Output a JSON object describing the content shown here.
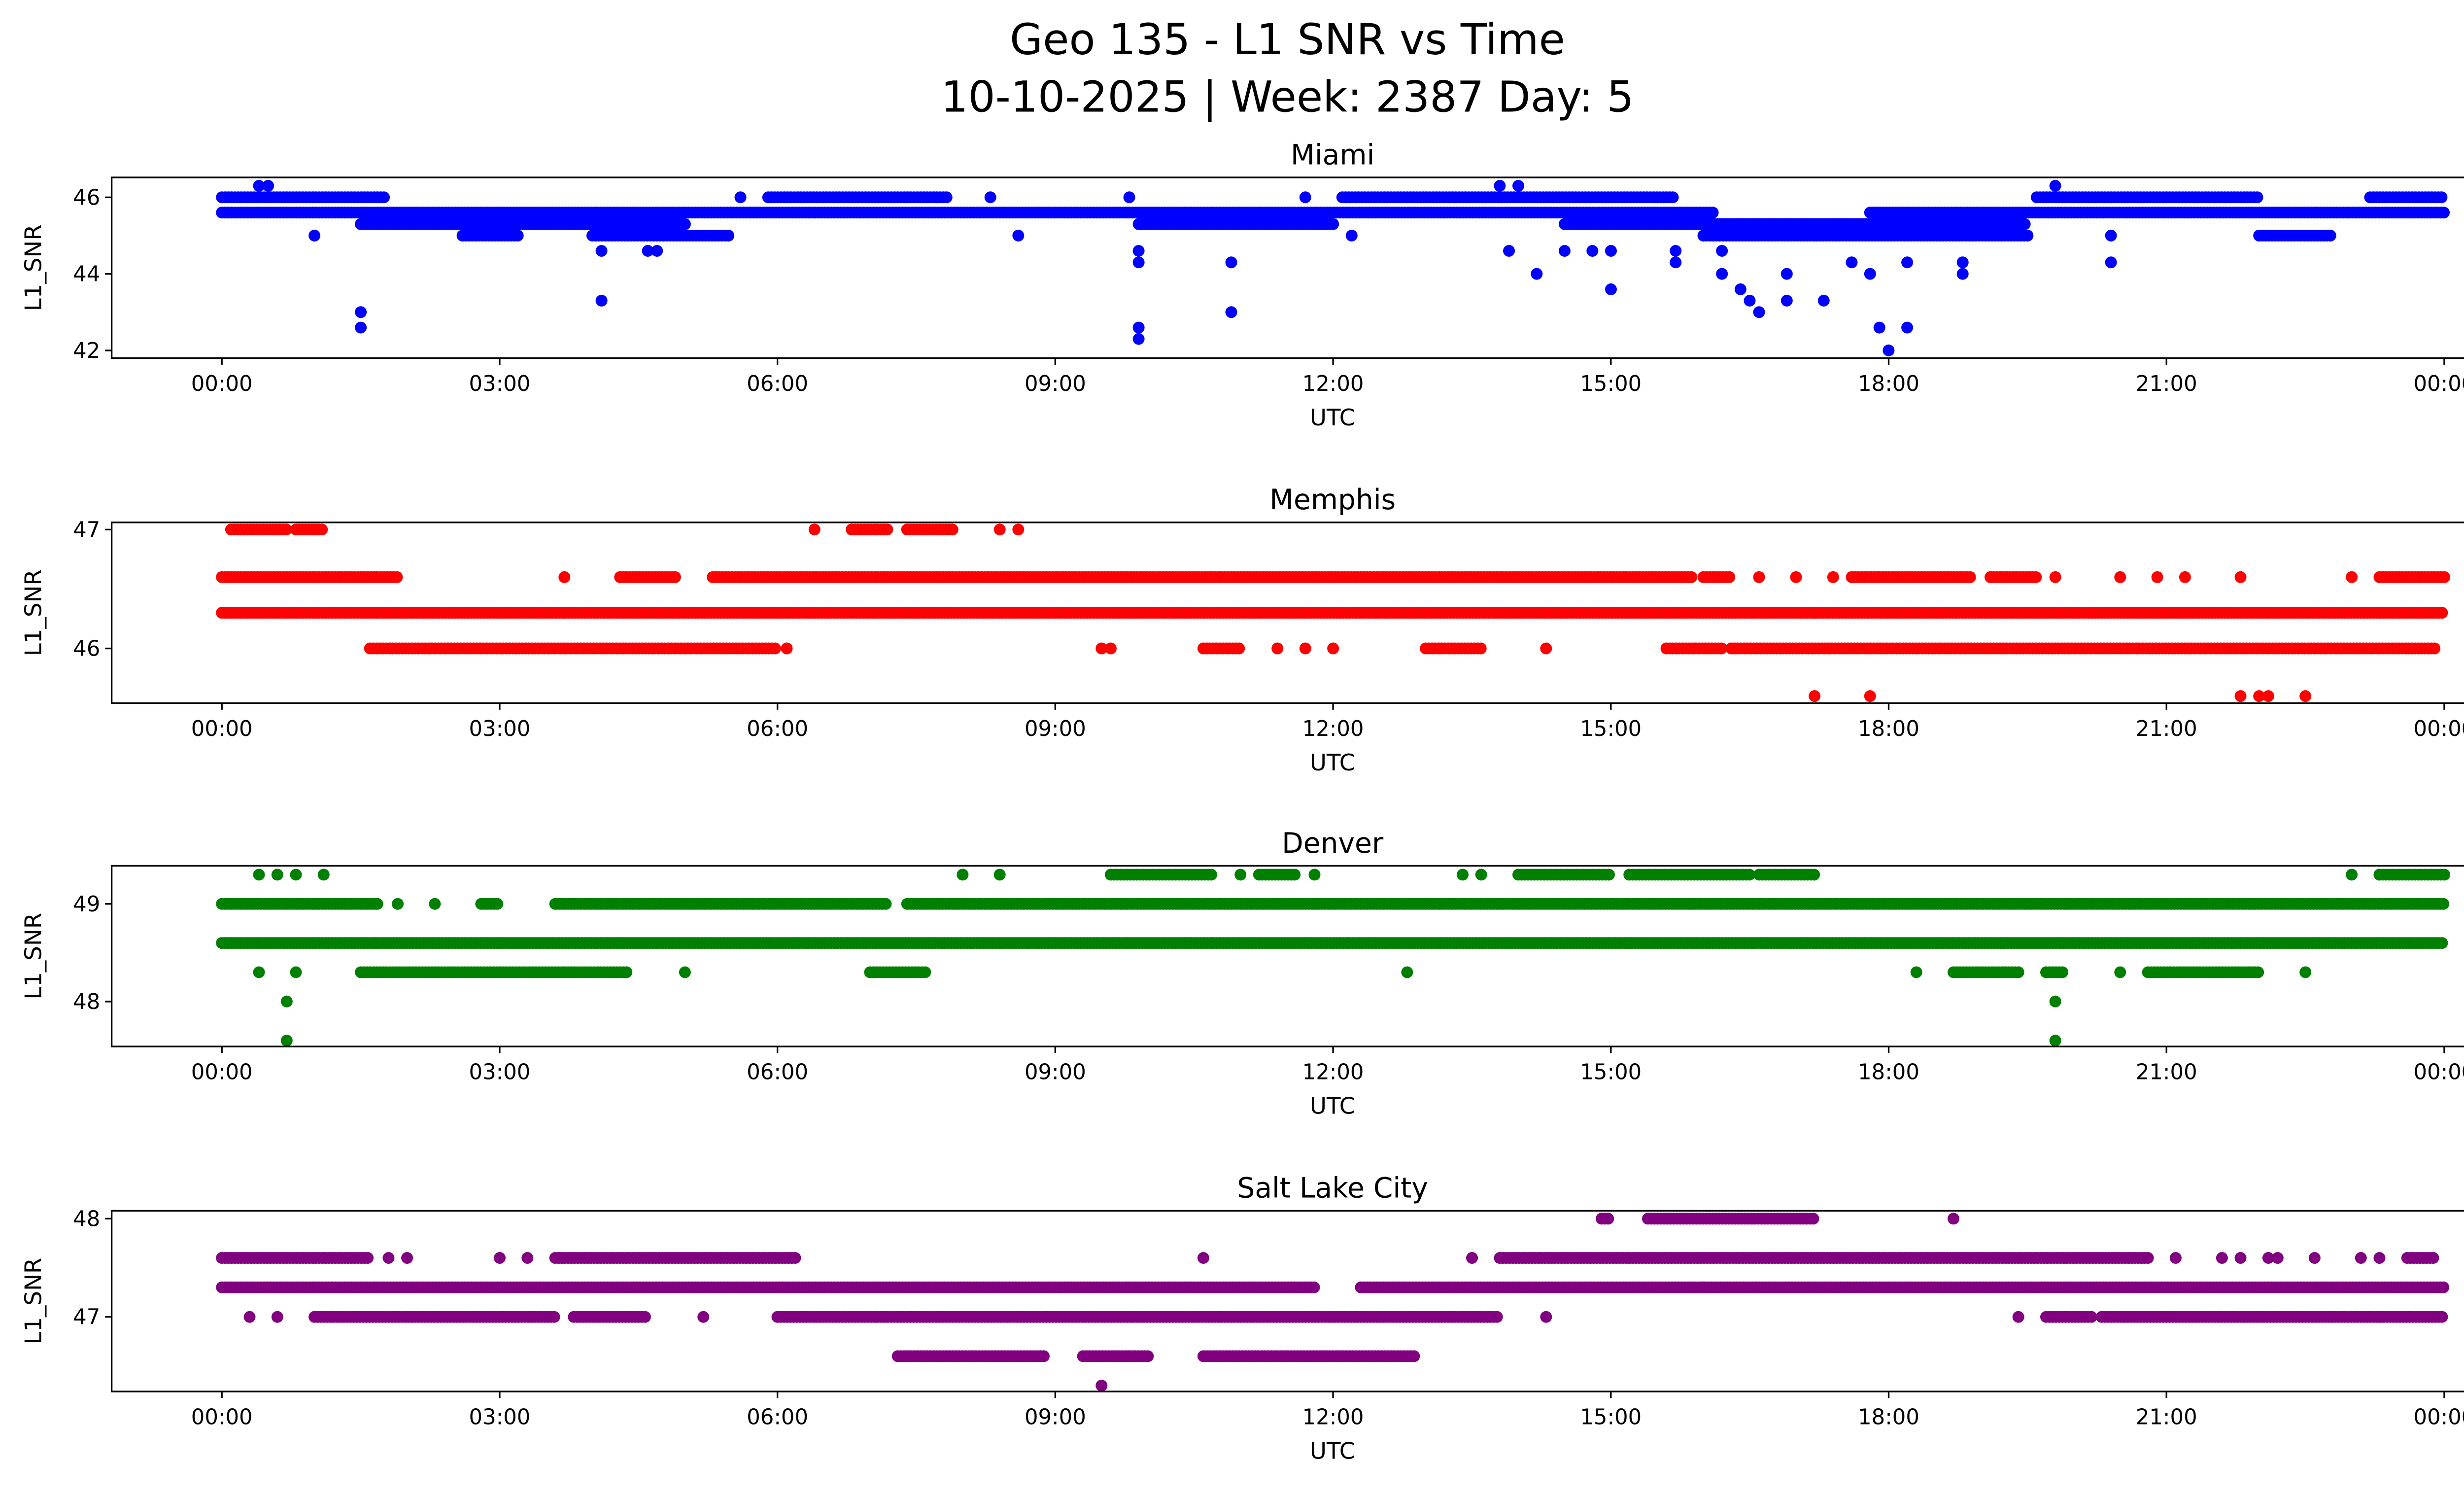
{
  "title_line1": "Geo 135 - L1 SNR vs Time",
  "title_line2": "10-10-2025 | Week: 2387 Day: 5",
  "chart_data": [
    {
      "type": "scatter",
      "title": "Miami",
      "color": "#0000ff",
      "xlabel": "UTC",
      "ylabel": "L1_SNR",
      "xlim_hours": [
        -1.19,
        25.18
      ],
      "ylim": [
        41.8,
        46.52
      ],
      "yticks": [
        42,
        44,
        46
      ],
      "xticks_hours": [
        0,
        3,
        6,
        9,
        12,
        15,
        18,
        21,
        24
      ],
      "xtick_labels": [
        "00:00",
        "03:00",
        "06:00",
        "09:00",
        "12:00",
        "15:00",
        "18:00",
        "21:00",
        "00:00"
      ],
      "segments": [
        [
          46.0,
          0,
          1.75
        ],
        [
          46.0,
          5.9,
          7.85
        ],
        [
          46.0,
          12.1,
          15.7
        ],
        [
          46.0,
          19.6,
          22.0
        ],
        [
          46.0,
          23.2,
          24
        ],
        [
          45.6,
          0,
          16.1
        ],
        [
          45.6,
          17.8,
          24
        ],
        [
          45.3,
          1.5,
          5.0
        ],
        [
          45.3,
          9.9,
          12.0
        ],
        [
          45.3,
          14.5,
          19.5
        ],
        [
          45.0,
          2.6,
          3.2
        ],
        [
          45.0,
          4.0,
          5.5
        ],
        [
          45.0,
          16.0,
          19.5
        ],
        [
          45.0,
          22.0,
          22.8
        ]
      ],
      "points": [
        [
          0.4,
          46.3
        ],
        [
          0.5,
          46.3
        ],
        [
          13.8,
          46.3
        ],
        [
          14.0,
          46.3
        ],
        [
          19.8,
          46.3
        ],
        [
          1.0,
          45.0
        ],
        [
          1.5,
          43.0
        ],
        [
          1.5,
          42.6
        ],
        [
          4.1,
          43.3
        ],
        [
          4.1,
          44.6
        ],
        [
          4.6,
          44.6
        ],
        [
          4.7,
          44.6
        ],
        [
          9.9,
          42.6
        ],
        [
          9.9,
          42.3
        ],
        [
          9.9,
          44.3
        ],
        [
          9.9,
          44.6
        ],
        [
          10.9,
          43.0
        ],
        [
          10.9,
          44.3
        ],
        [
          13.9,
          44.6
        ],
        [
          14.2,
          44.0
        ],
        [
          14.5,
          44.6
        ],
        [
          14.8,
          44.6
        ],
        [
          15.0,
          43.6
        ],
        [
          15.0,
          44.6
        ],
        [
          15.7,
          44.3
        ],
        [
          15.7,
          44.6
        ],
        [
          16.2,
          44.0
        ],
        [
          16.2,
          44.6
        ],
        [
          16.4,
          43.6
        ],
        [
          16.5,
          43.3
        ],
        [
          16.6,
          43.0
        ],
        [
          16.9,
          43.3
        ],
        [
          16.9,
          44.0
        ],
        [
          17.3,
          43.3
        ],
        [
          17.6,
          44.3
        ],
        [
          17.8,
          44.0
        ],
        [
          17.9,
          42.6
        ],
        [
          18.0,
          42.0
        ],
        [
          18.2,
          42.6
        ],
        [
          18.2,
          44.3
        ],
        [
          18.8,
          44.0
        ],
        [
          18.8,
          44.3
        ],
        [
          20.4,
          44.3
        ],
        [
          20.4,
          45.0
        ],
        [
          5.6,
          46.0
        ],
        [
          8.3,
          46.0
        ],
        [
          9.8,
          46.0
        ],
        [
          11.7,
          46.0
        ],
        [
          2.6,
          45.0
        ],
        [
          8.6,
          45.0
        ],
        [
          12.2,
          45.0
        ]
      ]
    },
    {
      "type": "scatter",
      "title": "Memphis",
      "color": "#ff0000",
      "xlabel": "UTC",
      "ylabel": "L1_SNR",
      "xlim_hours": [
        -1.19,
        25.18
      ],
      "ylim": [
        45.54,
        47.06
      ],
      "yticks": [
        46,
        47
      ],
      "xticks_hours": [
        0,
        3,
        6,
        9,
        12,
        15,
        18,
        21,
        24
      ],
      "xtick_labels": [
        "00:00",
        "03:00",
        "06:00",
        "09:00",
        "12:00",
        "15:00",
        "18:00",
        "21:00",
        "00:00"
      ],
      "segments": [
        [
          47.0,
          0.1,
          0.7
        ],
        [
          47.0,
          0.8,
          1.1
        ],
        [
          47.0,
          6.8,
          7.2
        ],
        [
          47.0,
          7.4,
          7.9
        ],
        [
          46.6,
          0,
          1.9
        ],
        [
          46.6,
          4.3,
          4.9
        ],
        [
          46.6,
          5.3,
          15.9
        ],
        [
          46.6,
          16.0,
          16.3
        ],
        [
          46.6,
          17.6,
          17.9
        ],
        [
          46.6,
          17.9,
          18.9
        ],
        [
          46.6,
          19.1,
          19.6
        ],
        [
          46.6,
          23.3,
          24
        ],
        [
          46.3,
          0,
          24
        ],
        [
          46.0,
          1.6,
          6.0
        ],
        [
          46.0,
          10.6,
          11.0
        ],
        [
          46.0,
          13.0,
          13.6
        ],
        [
          46.0,
          15.6,
          16.2
        ],
        [
          46.0,
          16.3,
          23.9
        ]
      ],
      "points": [
        [
          6.4,
          47.0
        ],
        [
          8.4,
          47.0
        ],
        [
          8.6,
          47.0
        ],
        [
          3.7,
          46.6
        ],
        [
          16.6,
          46.6
        ],
        [
          17.0,
          46.6
        ],
        [
          17.4,
          46.6
        ],
        [
          19.8,
          46.6
        ],
        [
          20.5,
          46.6
        ],
        [
          20.9,
          46.6
        ],
        [
          21.2,
          46.6
        ],
        [
          21.8,
          46.6
        ],
        [
          23.0,
          46.6
        ],
        [
          6.1,
          46.0
        ],
        [
          9.5,
          46.0
        ],
        [
          9.6,
          46.0
        ],
        [
          11.4,
          46.0
        ],
        [
          11.7,
          46.0
        ],
        [
          12.0,
          46.0
        ],
        [
          14.3,
          46.0
        ],
        [
          17.2,
          45.6
        ],
        [
          17.8,
          45.6
        ],
        [
          21.8,
          45.6
        ],
        [
          22.0,
          45.6
        ],
        [
          22.1,
          45.6
        ],
        [
          22.5,
          45.6
        ]
      ]
    },
    {
      "type": "scatter",
      "title": "Denver",
      "color": "#008000",
      "xlabel": "UTC",
      "ylabel": "L1_SNR",
      "xlim_hours": [
        -1.19,
        25.18
      ],
      "ylim": [
        47.54,
        49.39
      ],
      "yticks": [
        48,
        49
      ],
      "xticks_hours": [
        0,
        3,
        6,
        9,
        12,
        15,
        18,
        21,
        24
      ],
      "xtick_labels": [
        "00:00",
        "03:00",
        "06:00",
        "09:00",
        "12:00",
        "15:00",
        "18:00",
        "21:00",
        "00:00"
      ],
      "segments": [
        [
          49.3,
          9.6,
          10.7
        ],
        [
          49.3,
          11.2,
          11.6
        ],
        [
          49.3,
          14.0,
          15.0
        ],
        [
          49.3,
          15.2,
          16.5
        ],
        [
          49.3,
          16.6,
          17.2
        ],
        [
          49.3,
          23.3,
          24
        ],
        [
          49.0,
          0,
          1.7
        ],
        [
          49.0,
          2.8,
          3.0
        ],
        [
          49.0,
          3.6,
          7.2
        ],
        [
          49.0,
          7.4,
          24
        ],
        [
          48.6,
          0,
          24
        ],
        [
          48.3,
          1.5,
          4.4
        ],
        [
          48.3,
          7.0,
          7.6
        ],
        [
          48.3,
          18.7,
          19.4
        ],
        [
          48.3,
          19.7,
          19.9
        ],
        [
          48.3,
          20.8,
          22.0
        ]
      ],
      "points": [
        [
          0.4,
          49.3
        ],
        [
          0.6,
          49.3
        ],
        [
          0.8,
          49.3
        ],
        [
          1.1,
          49.3
        ],
        [
          8.0,
          49.3
        ],
        [
          8.4,
          49.3
        ],
        [
          11.0,
          49.3
        ],
        [
          11.8,
          49.3
        ],
        [
          13.4,
          49.3
        ],
        [
          13.6,
          49.3
        ],
        [
          23.0,
          49.3
        ],
        [
          1.9,
          49.0
        ],
        [
          2.3,
          49.0
        ],
        [
          0.4,
          48.3
        ],
        [
          0.8,
          48.3
        ],
        [
          5.0,
          48.3
        ],
        [
          12.8,
          48.3
        ],
        [
          18.3,
          48.3
        ],
        [
          20.5,
          48.3
        ],
        [
          22.5,
          48.3
        ],
        [
          0.7,
          48.0
        ],
        [
          19.8,
          48.0
        ],
        [
          0.7,
          47.6
        ],
        [
          19.8,
          47.6
        ]
      ]
    },
    {
      "type": "scatter",
      "title": "Salt Lake City",
      "color": "#800080",
      "xlabel": "UTC",
      "ylabel": "L1_SNR",
      "xlim_hours": [
        -1.19,
        25.18
      ],
      "ylim": [
        46.24,
        48.08
      ],
      "yticks": [
        47,
        48
      ],
      "xticks_hours": [
        0,
        3,
        6,
        9,
        12,
        15,
        18,
        21,
        24
      ],
      "xtick_labels": [
        "00:00",
        "03:00",
        "06:00",
        "09:00",
        "12:00",
        "15:00",
        "18:00",
        "21:00",
        "00:00"
      ],
      "segments": [
        [
          48.0,
          15.4,
          17.2
        ],
        [
          48.0,
          14.9,
          15.0
        ],
        [
          47.6,
          0,
          1.6
        ],
        [
          47.6,
          3.6,
          6.2
        ],
        [
          47.6,
          13.8,
          20.8
        ],
        [
          47.6,
          23.6,
          23.9
        ],
        [
          47.3,
          0,
          11.8
        ],
        [
          47.3,
          12.3,
          24
        ],
        [
          47.0,
          1.0,
          3.6
        ],
        [
          47.0,
          3.8,
          4.6
        ],
        [
          47.0,
          6.0,
          13.8
        ],
        [
          47.0,
          19.7,
          20.2
        ],
        [
          47.0,
          20.3,
          24
        ],
        [
          46.6,
          7.3,
          8.9
        ],
        [
          46.6,
          9.3,
          10.0
        ],
        [
          46.6,
          10.6,
          12.9
        ]
      ],
      "points": [
        [
          18.7,
          48.0
        ],
        [
          1.8,
          47.6
        ],
        [
          2.0,
          47.6
        ],
        [
          3.0,
          47.6
        ],
        [
          3.3,
          47.6
        ],
        [
          10.6,
          47.6
        ],
        [
          13.5,
          47.6
        ],
        [
          21.1,
          47.6
        ],
        [
          21.6,
          47.6
        ],
        [
          21.8,
          47.6
        ],
        [
          22.1,
          47.6
        ],
        [
          22.2,
          47.6
        ],
        [
          22.6,
          47.6
        ],
        [
          23.1,
          47.6
        ],
        [
          23.3,
          47.6
        ],
        [
          16.0,
          47.3
        ],
        [
          0.3,
          47.0
        ],
        [
          0.6,
          47.0
        ],
        [
          5.2,
          47.0
        ],
        [
          14.3,
          47.0
        ],
        [
          19.4,
          47.0
        ],
        [
          9.5,
          46.3
        ]
      ]
    }
  ]
}
